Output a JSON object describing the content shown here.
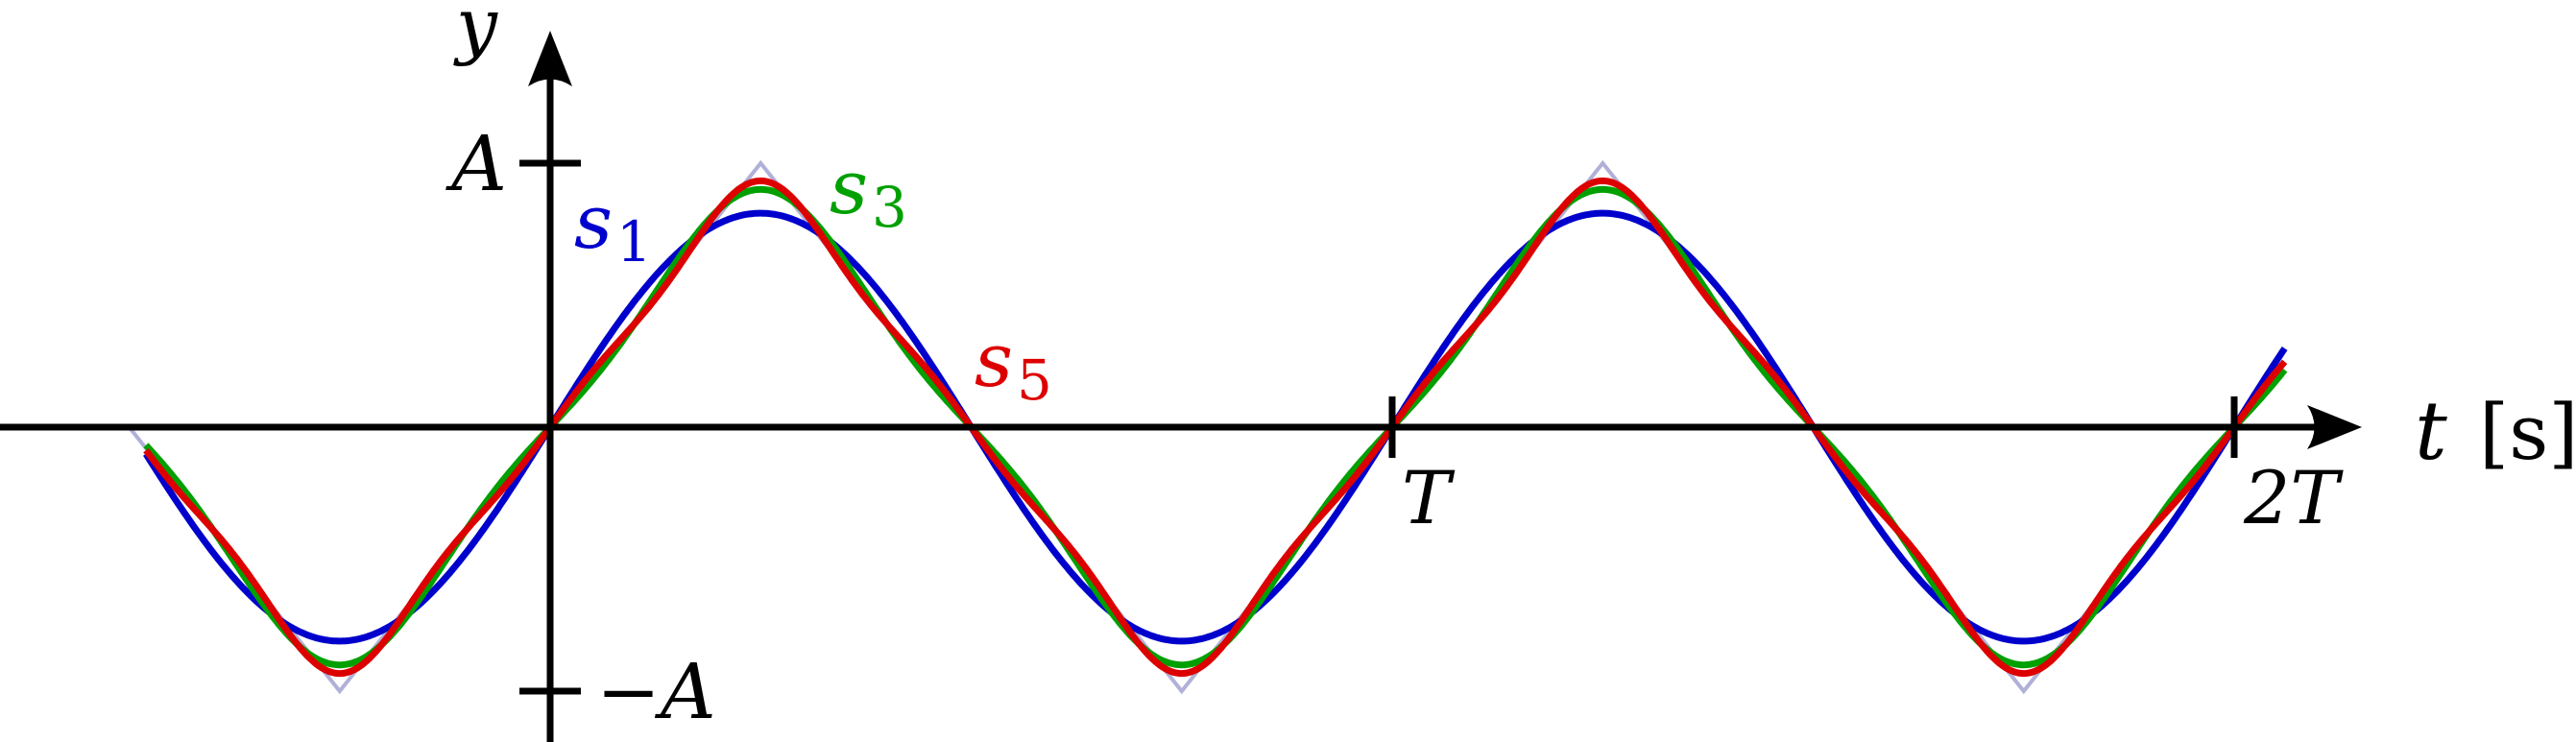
{
  "chart_data": {
    "type": "line",
    "title": "",
    "xlabel": "t",
    "xunit": "[s]",
    "ylabel": "y",
    "x_ticks": [
      {
        "x": 1,
        "label": "T"
      },
      {
        "x": 2,
        "label": "2T"
      }
    ],
    "y_ticks": [
      {
        "y": 1,
        "label": "A"
      },
      {
        "y": -1,
        "label": "−A"
      }
    ],
    "xlim": [
      -0.655,
      2.14
    ],
    "ylim": [
      -1.19,
      1.51
    ],
    "grid": false,
    "legend": "none",
    "signal": {
      "description_shape": "triangle",
      "period": 1,
      "amplitude": 1,
      "x": [
        -0.5,
        -0.25,
        0,
        0.25,
        0.5,
        0.75,
        1,
        1.25,
        1.5,
        1.75,
        2
      ],
      "y": [
        0,
        -1,
        0,
        1,
        0,
        -1,
        0,
        1,
        0,
        -1,
        0
      ],
      "color": "#b0b0d8"
    },
    "series": [
      {
        "name": "s1",
        "label_main": "s",
        "label_sub": "1",
        "harmonics": [
          1
        ],
        "color": "#0000cc",
        "peak": 0.81
      },
      {
        "name": "s3",
        "label_main": "s",
        "label_sub": "3",
        "harmonics": [
          1,
          3
        ],
        "color": "#00a000",
        "peak": 0.9
      },
      {
        "name": "s5",
        "label_main": "s",
        "label_sub": "5",
        "harmonics": [
          1,
          3,
          5
        ],
        "color": "#dd0000",
        "peak": 0.93
      }
    ]
  }
}
